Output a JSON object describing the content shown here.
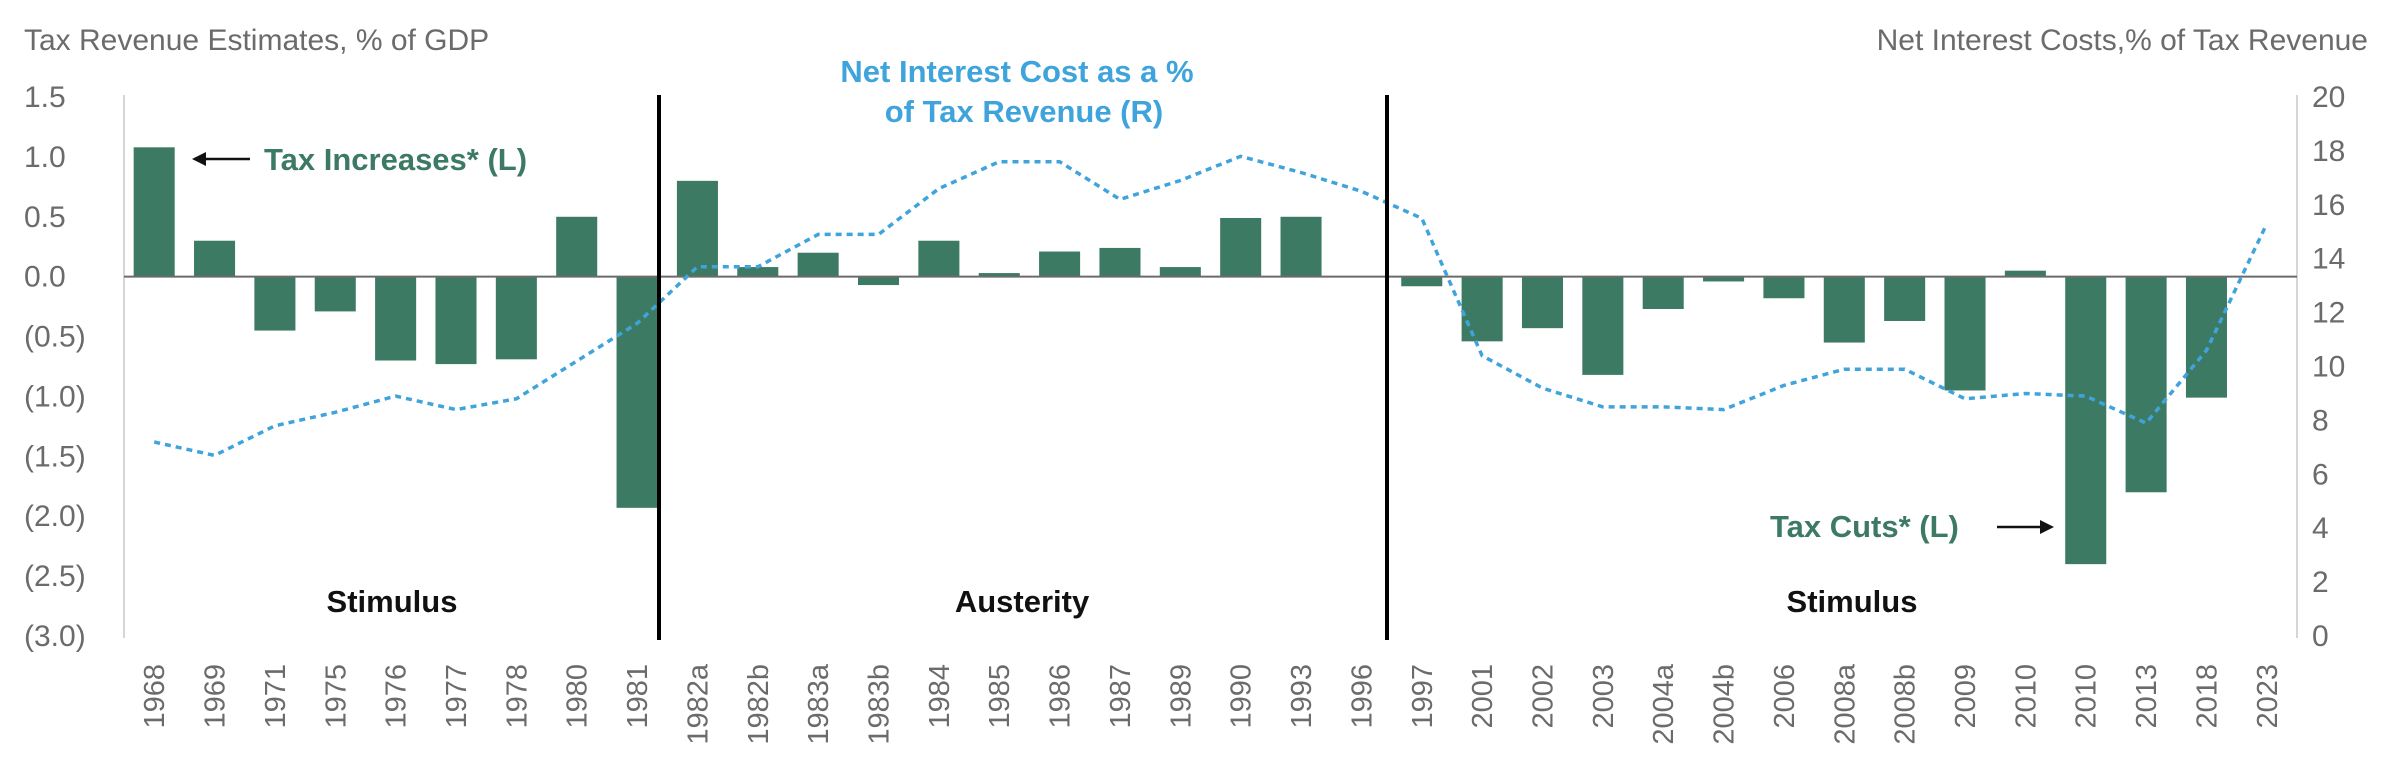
{
  "chart_data": {
    "type": "bar",
    "left_axis_title": "Tax Revenue Estimates, % of GDP",
    "right_axis_title": "Net Interest Costs,% of Tax Revenue",
    "left_ylim": [
      -3.0,
      1.5
    ],
    "right_ylim": [
      0,
      20
    ],
    "left_ticks": [
      "1.5",
      "1.0",
      "0.5",
      "0.0",
      "(0.5)",
      "(1.0)",
      "(1.5)",
      "(2.0)",
      "(2.5)",
      "(3.0)"
    ],
    "right_ticks": [
      "20",
      "18",
      "16",
      "14",
      "12",
      "10",
      "8",
      "6",
      "4",
      "2",
      "0"
    ],
    "categories": [
      "1968",
      "1969",
      "1971",
      "1975",
      "1976",
      "1977",
      "1978",
      "1980",
      "1981",
      "1982a",
      "1982b",
      "1983a",
      "1983b",
      "1984",
      "1985",
      "1986",
      "1987",
      "1989",
      "1990",
      "1993",
      "1996",
      "1997",
      "2001",
      "2002",
      "2003",
      "2004a",
      "2004b",
      "2006",
      "2008a",
      "2008b",
      "2009",
      "2010",
      "2010",
      "2013",
      "2018",
      "2023"
    ],
    "series": [
      {
        "name": "Tax Increases* (L) / Tax Cuts* (L)",
        "axis": "left",
        "type": "bar",
        "values": [
          1.08,
          0.3,
          -0.45,
          -0.29,
          -0.7,
          -0.73,
          -0.69,
          0.5,
          -1.93,
          0.8,
          0.08,
          0.2,
          -0.07,
          0.3,
          0.03,
          0.21,
          0.24,
          0.08,
          0.49,
          0.5,
          0.0,
          -0.08,
          -0.54,
          -0.43,
          -0.82,
          -0.27,
          -0.04,
          -0.18,
          -0.55,
          -0.37,
          -0.95,
          0.05,
          -2.4,
          -1.8,
          -1.01,
          0.0
        ]
      },
      {
        "name": "Net Interest Cost as a % of Tax Revenue (R)",
        "axis": "right",
        "type": "line",
        "values": [
          7.2,
          6.7,
          7.8,
          8.3,
          8.9,
          8.4,
          8.8,
          10.2,
          11.6,
          13.7,
          13.7,
          14.9,
          14.9,
          16.6,
          17.6,
          17.6,
          16.2,
          16.9,
          17.8,
          17.2,
          16.5,
          15.5,
          10.4,
          9.2,
          8.5,
          8.5,
          8.4,
          9.3,
          9.9,
          9.9,
          8.8,
          9.0,
          8.9,
          7.9,
          10.6,
          15.3
        ]
      }
    ],
    "annotations": {
      "tax_increases": "Tax Increases* (L)",
      "tax_cuts": "Tax Cuts* (L)",
      "interest_line_1": "Net Interest Cost as a %",
      "interest_line_2": "of Tax Revenue (R)"
    },
    "periods": [
      "Stimulus",
      "Austerity",
      "Stimulus"
    ],
    "colors": {
      "bar": "#3d7a63",
      "line": "#3fa4dc",
      "axis_text": "#6b6b6b",
      "divider": "#000000"
    }
  }
}
